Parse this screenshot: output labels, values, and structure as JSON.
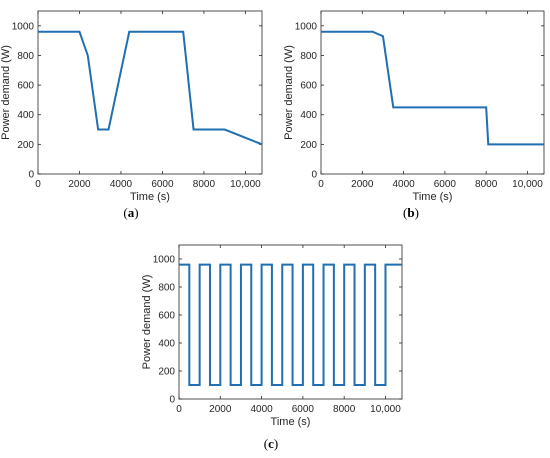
{
  "colors": {
    "series": "#1f6fb2",
    "axis": "#262626",
    "frame": "#262626"
  },
  "chart_data": [
    {
      "type": "line",
      "panel_label": {
        "open": "(",
        "letter": "a",
        "close": ")"
      },
      "xlabel": "Time (s)",
      "ylabel": "Power demand (W)",
      "xlim": [
        0,
        10800
      ],
      "ylim": [
        0,
        1100
      ],
      "xticks": [
        0,
        2000,
        4000,
        6000,
        8000,
        10000
      ],
      "xtick_labels": [
        "0",
        "2000",
        "4000",
        "6000",
        "8000",
        "10,000"
      ],
      "yticks": [
        0,
        200,
        400,
        600,
        800,
        1000
      ],
      "ytick_labels": [
        "0",
        "200",
        "400",
        "600",
        "800",
        "1000"
      ],
      "series": [
        {
          "x": [
            0,
            2000,
            2400,
            2900,
            3400,
            4400,
            7000,
            7500,
            9000,
            10800
          ],
          "y": [
            960,
            960,
            800,
            300,
            300,
            960,
            960,
            300,
            300,
            200
          ]
        }
      ]
    },
    {
      "type": "line",
      "panel_label": {
        "open": "(",
        "letter": "b",
        "close": ")"
      },
      "xlabel": "Time (s)",
      "ylabel": "Power demand (W)",
      "xlim": [
        0,
        10800
      ],
      "ylim": [
        0,
        1100
      ],
      "xticks": [
        0,
        2000,
        4000,
        6000,
        8000,
        10000
      ],
      "xtick_labels": [
        "0",
        "2000",
        "4000",
        "6000",
        "8000",
        "10,000"
      ],
      "yticks": [
        0,
        200,
        400,
        600,
        800,
        1000
      ],
      "ytick_labels": [
        "0",
        "200",
        "400",
        "600",
        "800",
        "1000"
      ],
      "series": [
        {
          "x": [
            0,
            2500,
            3000,
            3500,
            8000,
            8100,
            10800
          ],
          "y": [
            960,
            960,
            930,
            450,
            450,
            200,
            200
          ]
        }
      ]
    },
    {
      "type": "line",
      "panel_label": {
        "open": "(",
        "letter": "c",
        "close": ")"
      },
      "xlabel": "Time (s)",
      "ylabel": "Power demand (W)",
      "xlim": [
        0,
        10800
      ],
      "ylim": [
        0,
        1100
      ],
      "xticks": [
        0,
        2000,
        4000,
        6000,
        8000,
        10000
      ],
      "xtick_labels": [
        "0",
        "2000",
        "4000",
        "6000",
        "8000",
        "10,000"
      ],
      "yticks": [
        0,
        200,
        400,
        600,
        800,
        1000
      ],
      "ytick_labels": [
        "0",
        "200",
        "400",
        "600",
        "800",
        "1000"
      ],
      "series": [
        {
          "x": [
            0,
            500,
            500,
            1000,
            1000,
            1500,
            1500,
            2000,
            2000,
            2500,
            2500,
            3000,
            3000,
            3500,
            3500,
            4000,
            4000,
            4500,
            4500,
            5000,
            5000,
            5500,
            5500,
            6000,
            6000,
            6500,
            6500,
            7000,
            7000,
            7500,
            7500,
            8000,
            8000,
            8500,
            8500,
            9000,
            9000,
            9500,
            9500,
            10000,
            10000,
            10800
          ],
          "y": [
            960,
            960,
            100,
            100,
            960,
            960,
            100,
            100,
            960,
            960,
            100,
            100,
            960,
            960,
            100,
            100,
            960,
            960,
            100,
            100,
            960,
            960,
            100,
            100,
            960,
            960,
            100,
            100,
            960,
            960,
            100,
            100,
            960,
            960,
            100,
            100,
            960,
            960,
            100,
            100,
            960,
            960
          ]
        }
      ]
    }
  ]
}
